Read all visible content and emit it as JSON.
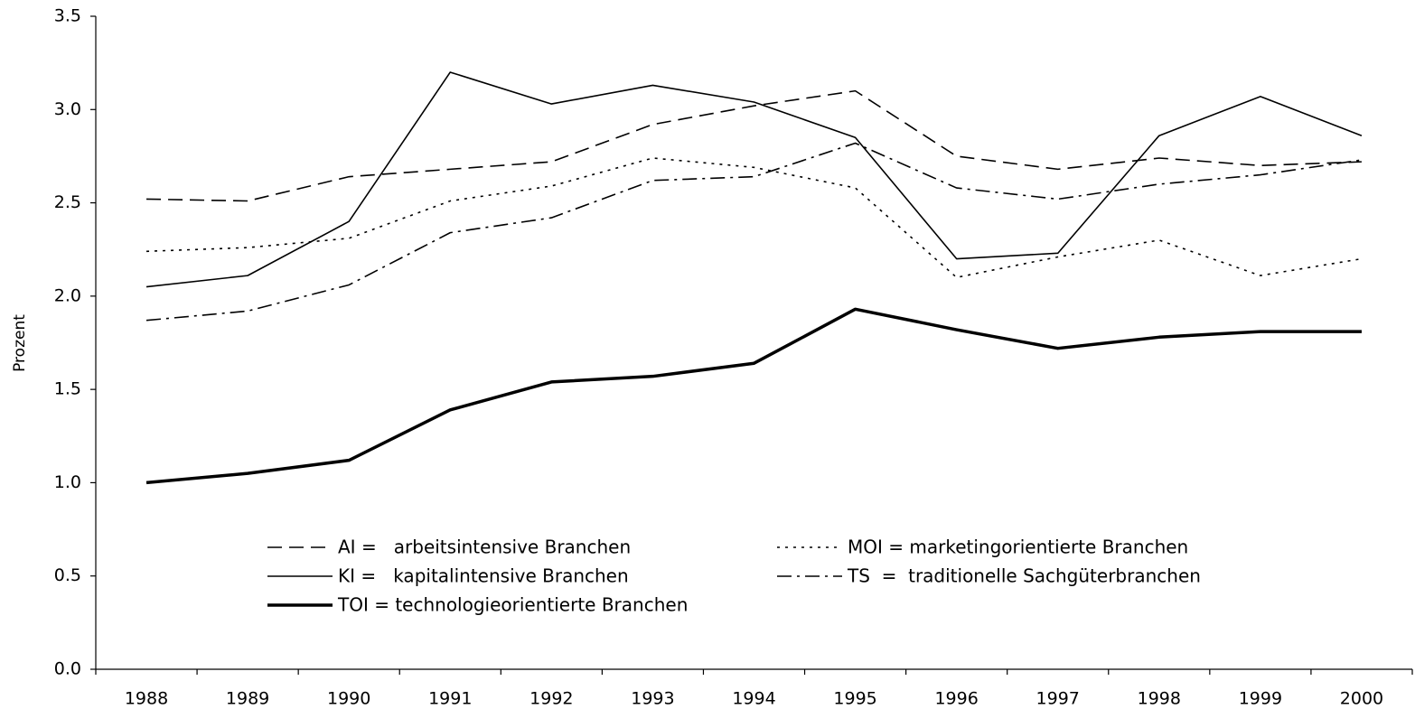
{
  "chart_data": {
    "type": "line",
    "y_label": "Prozent",
    "categories": [
      "1988",
      "1989",
      "1990",
      "1991",
      "1992",
      "1993",
      "1994",
      "1995",
      "1996",
      "1997",
      "1998",
      "1999",
      "2000"
    ],
    "ylim": [
      0,
      3.5
    ],
    "yticks": [
      {
        "value": 0,
        "label": "0.0"
      },
      0.5,
      {
        "value": 1,
        "label": "1.0"
      },
      1.5,
      {
        "value": 2,
        "label": "2.0"
      },
      2.5,
      {
        "value": 3,
        "label": "3.0"
      },
      3.5
    ],
    "grid": false,
    "legend": "inside",
    "series": [
      {
        "name": "AI =   arbeitsintensive Branchen",
        "color": "#000000",
        "linestyle": "dashed",
        "values": [
          2.52,
          2.51,
          2.64,
          2.68,
          2.72,
          2.92,
          3.02,
          3.1,
          2.75,
          2.68,
          2.74,
          2.7,
          2.72
        ]
      },
      {
        "name": "MOI = marketingorientierte Branchen",
        "color": "#000000",
        "linestyle": "dotted",
        "values": [
          2.24,
          2.26,
          2.31,
          2.51,
          2.59,
          2.74,
          2.69,
          2.58,
          2.1,
          2.21,
          2.3,
          2.11,
          2.2
        ]
      },
      {
        "name": "KI =   kapitalintensive Branchen",
        "color": "#000000",
        "linestyle": "solid",
        "values": [
          2.05,
          2.11,
          2.4,
          3.2,
          3.03,
          3.13,
          3.04,
          2.85,
          2.2,
          2.23,
          2.86,
          3.07,
          2.86
        ]
      },
      {
        "name": "TS  =  traditionelle Sachgüterbranchen",
        "color": "#000000",
        "linestyle": "dashdot",
        "values": [
          1.87,
          1.92,
          2.06,
          2.34,
          2.42,
          2.62,
          2.64,
          2.82,
          2.58,
          2.52,
          2.6,
          2.65,
          2.73
        ]
      },
      {
        "name": "TOI = technologieorientierte Branchen",
        "color": "#000000",
        "linestyle": "thick",
        "values": [
          1.0,
          1.05,
          1.12,
          1.39,
          1.54,
          1.57,
          1.64,
          1.93,
          1.82,
          1.72,
          1.78,
          1.81,
          1.81
        ]
      }
    ]
  }
}
